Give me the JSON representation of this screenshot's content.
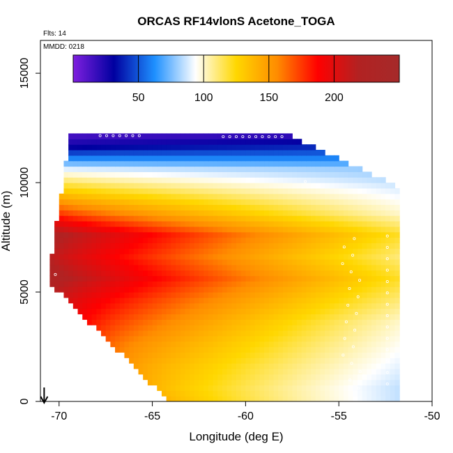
{
  "chart_data": {
    "type": "heatmap",
    "title": "ORCAS RF14vlonS Acetone_TOGA",
    "flights_label": "Flts: 14",
    "date_label": "MMDD: 0218",
    "xlabel": "Longitude (deg E)",
    "ylabel": "Altitude (m)",
    "xlim": [
      -71.0,
      -50.0
    ],
    "ylim": [
      0,
      16500
    ],
    "x_ticks": [
      -70,
      -65,
      -60,
      -55,
      -50
    ],
    "x_tick_labels": [
      "-70",
      "-65",
      "-60",
      "-55",
      "-50"
    ],
    "y_ticks": [
      0,
      5000,
      10000,
      15000
    ],
    "y_tick_labels": [
      "0",
      "5000",
      "10000",
      "15000"
    ],
    "colorbar": {
      "range": [
        0,
        250
      ],
      "ticks": [
        50,
        100,
        150,
        200
      ],
      "tick_labels": [
        "50",
        "100",
        "150",
        "200"
      ],
      "colors": [
        "#7f1fdf",
        "#0000a0",
        "#1e90ff",
        "#ffffff",
        "#ffd700",
        "#ff8c00",
        "#ff0000",
        "#b22222",
        "#a52a2a"
      ]
    },
    "profile_values": {
      "altitude_m": [
        500,
        1500,
        2500,
        3500,
        4500,
        5500,
        6500,
        7500,
        8500,
        9500,
        10500,
        11500,
        12000
      ],
      "west_acetone": [
        140,
        150,
        165,
        185,
        205,
        230,
        215,
        225,
        175,
        130,
        90,
        30,
        15
      ],
      "east_acetone": [
        85,
        90,
        95,
        100,
        110,
        120,
        110,
        120,
        100,
        90,
        80,
        40,
        20
      ]
    },
    "aircraft_marker_longitude": -70.8
  }
}
